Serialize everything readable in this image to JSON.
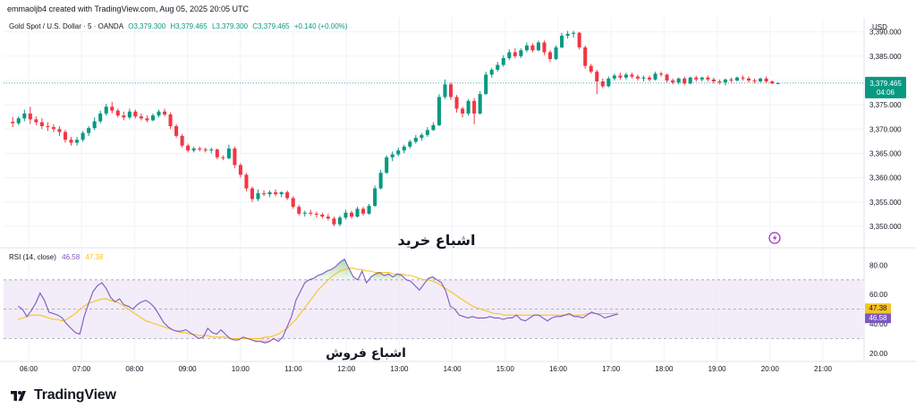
{
  "header": {
    "credit": "emmaoljb4 created with TradingView.com, Aug 05, 2025 20:05 UTC",
    "symbol": "Gold Spot / U.S. Dollar · 5 · OANDA",
    "open": "O3,379.300",
    "high": "H3,379.465",
    "low": "L3,379.300",
    "close": "C3,379.465",
    "change": "+0.140 (+0.00%)",
    "currency": "USD"
  },
  "brand": {
    "name": "TradingView"
  },
  "colors": {
    "up": "#089981",
    "down": "#f23645",
    "rsi": "#7e57c2",
    "rsi_ma": "#f7c325",
    "band": "#ede7f6",
    "grid": "#f0f3fa",
    "price_tag": "#089981",
    "alert_icon": "#9c27b0"
  },
  "annotations": {
    "overbought": "اشباع خرید",
    "oversold": "اشباع فروش"
  },
  "price_tag": {
    "price": "3,379.465",
    "countdown": "04:06"
  },
  "chart_data": [
    {
      "type": "candlestick",
      "title": "Gold Spot / U.S. Dollar · 5 · OANDA",
      "yticks": [
        "3,350.000",
        "3,355.000",
        "3,360.000",
        "3,365.000",
        "3,370.000",
        "3,375.000",
        "3,380.000",
        "3,385.000",
        "3,390.000"
      ],
      "ylim": [
        3346.5,
        3392.5
      ],
      "xticks": [
        "06:00",
        "07:00",
        "08:00",
        "09:00",
        "10:00",
        "11:00",
        "12:00",
        "13:00",
        "14:00",
        "15:00",
        "16:00",
        "17:00",
        "18:00",
        "19:00",
        "20:00",
        "21:00"
      ],
      "xlim_hours": [
        5.7,
        21.35
      ],
      "candles": [
        [
          3371.5,
          3372.5,
          3370.4,
          3371.2
        ],
        [
          3371.2,
          3372.6,
          3370.8,
          3372.2
        ],
        [
          3372.2,
          3374.0,
          3371.6,
          3373.2
        ],
        [
          3373.2,
          3374.6,
          3371.0,
          3372.0
        ],
        [
          3372.0,
          3372.6,
          3370.8,
          3371.4
        ],
        [
          3371.4,
          3372.2,
          3370.0,
          3370.6
        ],
        [
          3370.6,
          3371.4,
          3369.6,
          3370.4
        ],
        [
          3370.4,
          3371.0,
          3369.4,
          3370.0
        ],
        [
          3370.0,
          3370.6,
          3368.6,
          3369.4
        ],
        [
          3369.4,
          3369.8,
          3367.2,
          3367.8
        ],
        [
          3367.8,
          3368.4,
          3366.6,
          3367.2
        ],
        [
          3367.2,
          3368.4,
          3366.6,
          3367.8
        ],
        [
          3367.8,
          3369.6,
          3367.4,
          3369.2
        ],
        [
          3369.2,
          3370.6,
          3368.6,
          3370.2
        ],
        [
          3370.2,
          3372.4,
          3369.8,
          3371.6
        ],
        [
          3371.6,
          3373.8,
          3371.2,
          3373.2
        ],
        [
          3373.2,
          3375.2,
          3372.8,
          3374.6
        ],
        [
          3374.6,
          3375.6,
          3373.2,
          3373.8
        ],
        [
          3373.8,
          3374.2,
          3372.4,
          3372.8
        ],
        [
          3372.8,
          3373.6,
          3371.8,
          3372.4
        ],
        [
          3372.4,
          3374.2,
          3372.0,
          3373.6
        ],
        [
          3373.6,
          3374.0,
          3372.2,
          3372.6
        ],
        [
          3372.6,
          3373.2,
          3371.8,
          3372.2
        ],
        [
          3372.2,
          3372.8,
          3371.4,
          3371.8
        ],
        [
          3371.8,
          3373.2,
          3371.6,
          3372.8
        ],
        [
          3372.8,
          3374.0,
          3372.4,
          3373.6
        ],
        [
          3373.6,
          3374.2,
          3372.6,
          3373.0
        ],
        [
          3373.0,
          3373.4,
          3370.0,
          3370.6
        ],
        [
          3370.6,
          3371.0,
          3368.2,
          3368.6
        ],
        [
          3368.6,
          3369.0,
          3366.2,
          3366.6
        ],
        [
          3366.6,
          3367.0,
          3365.2,
          3365.6
        ],
        [
          3365.6,
          3366.4,
          3365.2,
          3366.0
        ],
        [
          3366.0,
          3366.4,
          3365.4,
          3365.8
        ],
        [
          3365.8,
          3366.2,
          3365.2,
          3365.6
        ],
        [
          3365.6,
          3366.2,
          3365.0,
          3365.8
        ],
        [
          3365.8,
          3366.0,
          3363.8,
          3364.2
        ],
        [
          3364.2,
          3364.6,
          3363.6,
          3364.0
        ],
        [
          3364.0,
          3366.8,
          3363.8,
          3366.0
        ],
        [
          3366.0,
          3366.4,
          3362.0,
          3362.6
        ],
        [
          3362.6,
          3363.0,
          3360.0,
          3360.6
        ],
        [
          3360.6,
          3361.0,
          3357.2,
          3357.8
        ],
        [
          3357.8,
          3358.2,
          3355.0,
          3355.6
        ],
        [
          3355.6,
          3357.6,
          3355.2,
          3356.8
        ],
        [
          3356.8,
          3357.4,
          3356.2,
          3356.6
        ],
        [
          3356.6,
          3357.4,
          3356.0,
          3357.0
        ],
        [
          3357.0,
          3357.6,
          3356.2,
          3356.6
        ],
        [
          3356.6,
          3357.2,
          3356.0,
          3357.0
        ],
        [
          3357.0,
          3357.4,
          3355.4,
          3355.8
        ],
        [
          3355.8,
          3356.2,
          3353.6,
          3354.0
        ],
        [
          3354.0,
          3354.4,
          3352.2,
          3352.6
        ],
        [
          3352.6,
          3353.2,
          3352.0,
          3352.8
        ],
        [
          3352.8,
          3353.4,
          3352.2,
          3352.6
        ],
        [
          3352.6,
          3353.0,
          3351.8,
          3352.4
        ],
        [
          3352.4,
          3352.8,
          3351.6,
          3352.0
        ],
        [
          3352.0,
          3352.6,
          3351.2,
          3351.6
        ],
        [
          3351.6,
          3352.0,
          3350.0,
          3350.4
        ],
        [
          3350.4,
          3352.2,
          3350.0,
          3351.8
        ],
        [
          3351.8,
          3353.4,
          3351.4,
          3352.8
        ],
        [
          3352.8,
          3353.2,
          3351.6,
          3352.0
        ],
        [
          3352.0,
          3354.0,
          3351.8,
          3353.6
        ],
        [
          3353.6,
          3354.0,
          3352.2,
          3352.6
        ],
        [
          3352.6,
          3354.6,
          3352.4,
          3354.2
        ],
        [
          3354.2,
          3358.4,
          3354.0,
          3357.8
        ],
        [
          3357.8,
          3361.6,
          3357.6,
          3361.0
        ],
        [
          3361.0,
          3364.6,
          3360.8,
          3364.2
        ],
        [
          3364.2,
          3365.4,
          3363.4,
          3364.8
        ],
        [
          3364.8,
          3366.2,
          3364.4,
          3365.6
        ],
        [
          3365.6,
          3366.8,
          3365.0,
          3366.4
        ],
        [
          3366.4,
          3367.8,
          3366.0,
          3367.4
        ],
        [
          3367.4,
          3368.8,
          3367.0,
          3368.2
        ],
        [
          3368.2,
          3369.2,
          3367.6,
          3368.8
        ],
        [
          3368.8,
          3370.4,
          3368.4,
          3369.8
        ],
        [
          3369.8,
          3371.4,
          3369.6,
          3370.8
        ],
        [
          3370.8,
          3377.2,
          3370.6,
          3376.6
        ],
        [
          3376.6,
          3380.2,
          3376.2,
          3379.2
        ],
        [
          3379.2,
          3379.6,
          3376.0,
          3376.6
        ],
        [
          3376.6,
          3377.0,
          3373.4,
          3374.2
        ],
        [
          3374.2,
          3374.6,
          3372.4,
          3373.2
        ],
        [
          3373.2,
          3376.2,
          3372.8,
          3375.8
        ],
        [
          3375.8,
          3376.4,
          3371.0,
          3373.2
        ],
        [
          3373.2,
          3377.8,
          3373.0,
          3377.2
        ],
        [
          3377.2,
          3381.8,
          3377.0,
          3381.2
        ],
        [
          3381.2,
          3382.6,
          3380.6,
          3382.2
        ],
        [
          3382.2,
          3383.8,
          3381.8,
          3383.2
        ],
        [
          3383.2,
          3385.2,
          3382.8,
          3384.6
        ],
        [
          3384.6,
          3386.4,
          3384.2,
          3385.8
        ],
        [
          3385.8,
          3386.6,
          3384.6,
          3385.0
        ],
        [
          3385.0,
          3386.6,
          3384.6,
          3386.2
        ],
        [
          3386.2,
          3387.8,
          3385.8,
          3387.2
        ],
        [
          3387.2,
          3387.6,
          3385.8,
          3386.2
        ],
        [
          3386.2,
          3388.2,
          3386.0,
          3387.8
        ],
        [
          3387.8,
          3388.2,
          3385.2,
          3385.8
        ],
        [
          3385.8,
          3386.2,
          3383.8,
          3384.4
        ],
        [
          3384.4,
          3387.2,
          3384.2,
          3386.8
        ],
        [
          3386.8,
          3389.8,
          3386.6,
          3389.2
        ],
        [
          3389.2,
          3390.2,
          3388.6,
          3389.6
        ],
        [
          3389.6,
          3390.2,
          3388.8,
          3389.8
        ],
        [
          3389.8,
          3390.0,
          3386.4,
          3386.8
        ],
        [
          3386.8,
          3387.2,
          3382.4,
          3383.0
        ],
        [
          3383.0,
          3383.4,
          3381.4,
          3381.8
        ],
        [
          3381.8,
          3382.2,
          3377.2,
          3379.8
        ],
        [
          3379.8,
          3380.4,
          3378.4,
          3378.8
        ],
        [
          3378.8,
          3380.8,
          3378.6,
          3380.4
        ],
        [
          3380.4,
          3381.4,
          3380.0,
          3381.0
        ],
        [
          3381.0,
          3381.6,
          3380.2,
          3380.6
        ],
        [
          3380.6,
          3381.6,
          3380.2,
          3381.2
        ],
        [
          3381.2,
          3381.6,
          3380.4,
          3380.8
        ],
        [
          3380.8,
          3381.2,
          3380.0,
          3380.4
        ],
        [
          3380.4,
          3381.0,
          3379.8,
          3380.6
        ],
        [
          3380.6,
          3381.0,
          3379.8,
          3380.2
        ],
        [
          3380.2,
          3381.8,
          3380.0,
          3381.4
        ],
        [
          3381.4,
          3381.8,
          3380.8,
          3381.2
        ],
        [
          3381.2,
          3381.4,
          3379.6,
          3380.0
        ],
        [
          3380.0,
          3380.4,
          3379.2,
          3379.6
        ],
        [
          3379.6,
          3380.6,
          3379.2,
          3380.4
        ],
        [
          3380.4,
          3380.8,
          3379.0,
          3379.4
        ],
        [
          3379.4,
          3380.8,
          3379.2,
          3380.6
        ],
        [
          3380.6,
          3381.0,
          3379.8,
          3380.2
        ],
        [
          3380.2,
          3380.8,
          3379.8,
          3380.6
        ],
        [
          3380.6,
          3381.0,
          3379.8,
          3380.2
        ],
        [
          3380.2,
          3380.6,
          3379.4,
          3379.8
        ],
        [
          3379.8,
          3380.2,
          3379.2,
          3379.6
        ],
        [
          3379.6,
          3380.4,
          3379.0,
          3380.2
        ],
        [
          3380.2,
          3380.6,
          3379.6,
          3380.0
        ],
        [
          3380.0,
          3380.8,
          3379.8,
          3380.6
        ],
        [
          3380.6,
          3381.0,
          3380.0,
          3380.4
        ],
        [
          3380.4,
          3380.8,
          3379.6,
          3380.0
        ],
        [
          3380.0,
          3380.4,
          3379.4,
          3379.8
        ],
        [
          3379.8,
          3380.6,
          3379.6,
          3380.4
        ],
        [
          3380.4,
          3380.8,
          3379.4,
          3379.8
        ],
        [
          3379.8,
          3380.0,
          3379.2,
          3379.4
        ],
        [
          3379.4,
          3379.6,
          3379.2,
          3379.465
        ]
      ]
    },
    {
      "type": "line",
      "title": "RSI (14, close)",
      "last_values": [
        "46.58",
        "47.38"
      ],
      "yticks": [
        "20.00",
        "40.00",
        "60.00",
        "80.00"
      ],
      "ylim": [
        15,
        90
      ],
      "bands": [
        30,
        50,
        70
      ],
      "x_start_hour": 5.8,
      "x_step_hour": 0.0833,
      "series": [
        {
          "name": "RSI",
          "values": [
            52,
            50,
            45,
            49,
            54,
            61,
            56,
            48,
            47,
            46,
            44,
            40,
            37,
            34,
            33,
            45,
            54,
            62,
            66,
            68,
            64,
            58,
            55,
            57,
            53,
            52,
            50,
            53,
            55,
            56,
            54,
            51,
            46,
            41,
            38,
            36,
            35,
            35,
            36,
            34,
            32,
            30,
            31,
            37,
            34,
            33,
            36,
            33,
            30,
            29,
            29,
            31,
            30,
            29,
            28,
            28,
            27,
            28,
            30,
            28,
            31,
            38,
            45,
            56,
            62,
            68,
            70,
            71,
            73,
            74,
            76,
            77,
            79,
            82,
            84,
            78,
            72,
            70,
            76,
            68,
            72,
            74,
            75,
            73,
            74,
            72,
            74,
            73,
            70,
            69,
            66,
            63,
            67,
            71,
            72,
            70,
            68,
            62,
            52,
            50,
            46,
            45,
            44,
            45,
            44,
            44,
            44,
            45,
            44,
            44,
            43,
            44,
            44,
            46,
            43,
            42,
            44,
            46,
            46,
            44,
            42,
            44,
            45,
            45,
            46,
            47,
            45,
            45,
            44,
            46,
            48,
            47,
            46,
            44,
            45,
            46,
            46.58
          ]
        },
        {
          "name": "RSI-based MA",
          "values": [
            43,
            44,
            45,
            46,
            46,
            46,
            45,
            44,
            43,
            43,
            42,
            43,
            45,
            47,
            50,
            52,
            54,
            55,
            56,
            57,
            57,
            56,
            55,
            54,
            52,
            50,
            48,
            46,
            44,
            42,
            41,
            40,
            39,
            38,
            37,
            36,
            35,
            34,
            34,
            33,
            33,
            32,
            32,
            32,
            31,
            31,
            31,
            31,
            30,
            30,
            30,
            30,
            30,
            30,
            30,
            30,
            31,
            31,
            32,
            33,
            35,
            37,
            40,
            43,
            47,
            51,
            55,
            59,
            63,
            66,
            69,
            72,
            74,
            76,
            77,
            78,
            78,
            77,
            77,
            76,
            76,
            75,
            75,
            75,
            75,
            74,
            74,
            74,
            73,
            73,
            72,
            71,
            70,
            70,
            69,
            68,
            66,
            64,
            62,
            60,
            58,
            56,
            54,
            52,
            51,
            50,
            49,
            48,
            47,
            47,
            46,
            46,
            46,
            46,
            46,
            46,
            46,
            46,
            46,
            46,
            46,
            46,
            46,
            46,
            46,
            46,
            46,
            46,
            46,
            47,
            47,
            47,
            47,
            47,
            47,
            47,
            47.38
          ]
        }
      ]
    }
  ]
}
